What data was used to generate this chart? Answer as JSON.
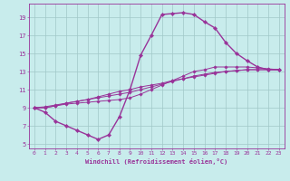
{
  "xlabel": "Windchill (Refroidissement éolien,°C)",
  "bg_color": "#c8ecec",
  "grid_color": "#a0c8c8",
  "line_color": "#993399",
  "xlim": [
    -0.5,
    23.5
  ],
  "ylim": [
    4.5,
    20.5
  ],
  "xticks": [
    0,
    1,
    2,
    3,
    4,
    5,
    6,
    7,
    8,
    9,
    10,
    11,
    12,
    13,
    14,
    15,
    16,
    17,
    18,
    19,
    20,
    21,
    22,
    23
  ],
  "yticks": [
    5,
    7,
    9,
    11,
    13,
    15,
    17,
    19
  ],
  "series": [
    [
      9.0,
      8.5,
      7.5,
      7.0,
      6.5,
      6.0,
      5.5,
      6.0,
      8.0,
      11.0,
      14.8,
      17.0,
      19.3,
      19.4,
      19.5,
      19.3,
      18.5,
      17.8,
      16.2,
      15.0,
      14.2,
      13.5,
      13.2,
      13.2
    ],
    [
      9.0,
      9.0,
      9.2,
      9.4,
      9.5,
      9.6,
      9.7,
      9.8,
      9.9,
      10.1,
      10.5,
      11.0,
      11.5,
      12.0,
      12.5,
      13.0,
      13.2,
      13.5,
      13.5,
      13.5,
      13.5,
      13.4,
      13.3,
      13.2
    ],
    [
      9.0,
      9.0,
      9.2,
      9.5,
      9.7,
      9.9,
      10.1,
      10.3,
      10.5,
      10.7,
      11.0,
      11.3,
      11.6,
      11.9,
      12.2,
      12.5,
      12.7,
      12.9,
      13.0,
      13.1,
      13.2,
      13.2,
      13.2,
      13.2
    ],
    [
      9.0,
      9.1,
      9.3,
      9.5,
      9.7,
      9.9,
      10.2,
      10.5,
      10.8,
      11.0,
      11.3,
      11.5,
      11.7,
      12.0,
      12.2,
      12.4,
      12.6,
      12.8,
      13.0,
      13.1,
      13.2,
      13.2,
      13.2,
      13.2
    ]
  ],
  "tick_fontsize": 4.5,
  "xlabel_fontsize": 5.0
}
